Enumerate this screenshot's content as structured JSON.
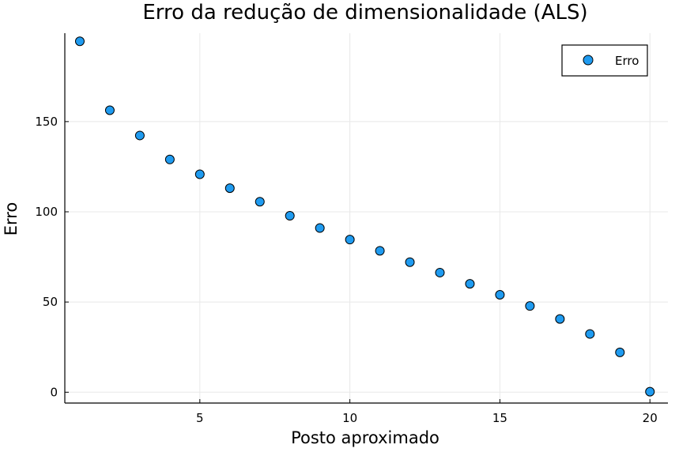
{
  "chart_data": {
    "type": "scatter",
    "title": "Erro da redução de dimensionalidade (ALS)",
    "xlabel": "Posto aproximado",
    "ylabel": "Erro",
    "xlim": [
      0.5,
      20.6
    ],
    "ylim": [
      -6,
      199
    ],
    "xticks": [
      5,
      10,
      15,
      20
    ],
    "xtick_labels": [
      "5",
      "10",
      "15",
      "20"
    ],
    "yticks": [
      0,
      50,
      100,
      150
    ],
    "ytick_labels": [
      "0",
      "50",
      "100",
      "150"
    ],
    "grid": true,
    "legend": {
      "position": "top-right",
      "entries": [
        "Erro"
      ]
    },
    "series": [
      {
        "name": "Erro",
        "color": "#1f9bf0",
        "x": [
          1,
          2,
          3,
          4,
          5,
          6,
          7,
          8,
          9,
          10,
          11,
          12,
          13,
          14,
          15,
          16,
          17,
          18,
          19,
          20
        ],
        "y": [
          194.5,
          156.3,
          142.3,
          129.0,
          120.8,
          113.1,
          105.6,
          97.8,
          91.0,
          84.6,
          78.4,
          72.1,
          66.3,
          60.1,
          54.0,
          47.8,
          40.6,
          32.3,
          22.1,
          0.3
        ]
      }
    ]
  }
}
